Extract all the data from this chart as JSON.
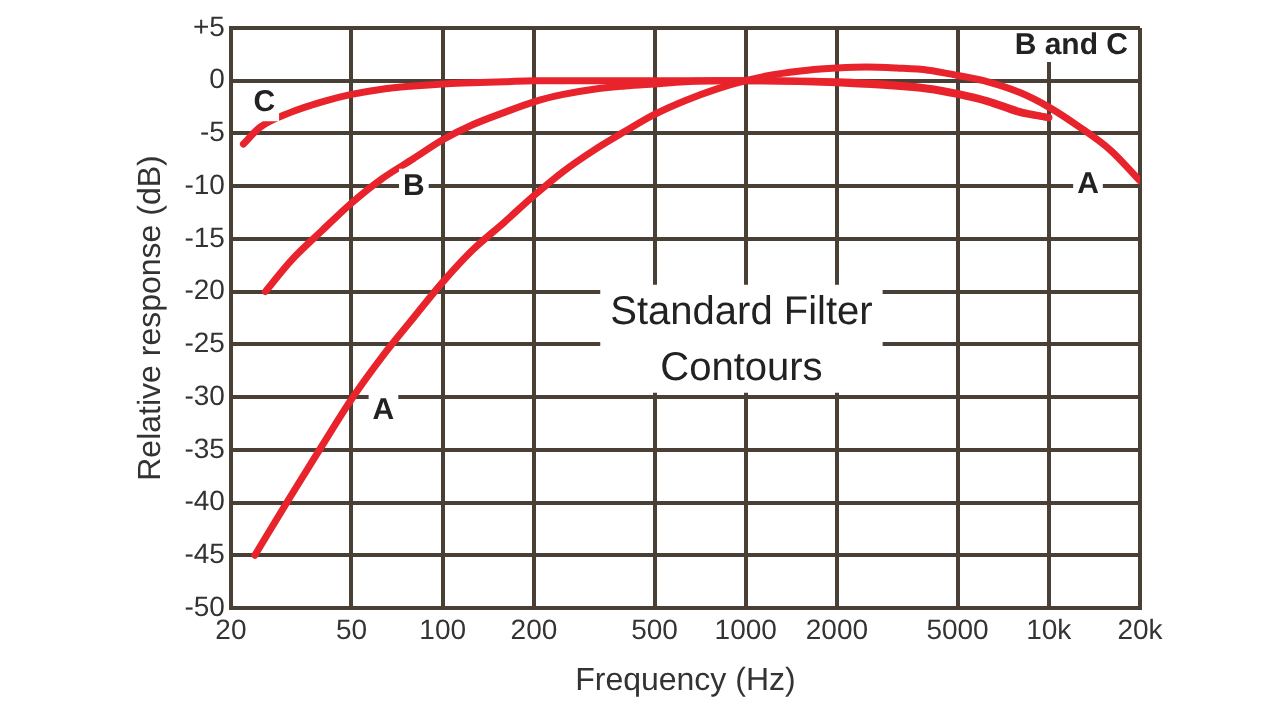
{
  "chart_data": {
    "type": "line",
    "xlabel": "Frequency (Hz)",
    "ylabel": "Relative response (dB)",
    "log": "x",
    "xlim": [
      20,
      20000
    ],
    "ylim": [
      -50,
      5
    ],
    "xticks": [
      20,
      50,
      100,
      200,
      500,
      1000,
      2000,
      5000,
      {
        "value": 10000,
        "label": "10k"
      },
      {
        "value": 20000,
        "label": "20k"
      }
    ],
    "yticks": [
      {
        "value": 5,
        "label": "+5"
      },
      0,
      -5,
      -10,
      -15,
      -20,
      -25,
      -30,
      -35,
      -40,
      -45,
      -50
    ],
    "grid": true,
    "legend": false,
    "marker": "none",
    "line_style": "solid",
    "series": [
      {
        "name": "A",
        "color": "#e8232b",
        "x": [
          24,
          31.5,
          40,
          50,
          63,
          80,
          100,
          125,
          160,
          200,
          250,
          315,
          400,
          500,
          630,
          800,
          1000,
          1250,
          1600,
          2000,
          2500,
          3150,
          4000,
          5000,
          6300,
          8000,
          10000,
          12500,
          16000,
          20000
        ],
        "values": [
          -45,
          -39.4,
          -34.6,
          -30.2,
          -26.2,
          -22.5,
          -19.1,
          -16.1,
          -13.4,
          -10.9,
          -8.6,
          -6.6,
          -4.8,
          -3.2,
          -1.9,
          -0.8,
          0,
          0.6,
          1,
          1.2,
          1.3,
          1.2,
          1,
          0.5,
          -0.1,
          -1.1,
          -2.5,
          -4.3,
          -6.6,
          -9.5
        ]
      },
      {
        "name": "B",
        "color": "#e8232b",
        "x": [
          26,
          31.5,
          40,
          50,
          63,
          80,
          100,
          125,
          160,
          200,
          250,
          315,
          400,
          500,
          630,
          800,
          1000,
          2000,
          4000,
          5000,
          6300,
          8000,
          10000
        ],
        "values": [
          -20,
          -17.1,
          -14.2,
          -11.6,
          -9.3,
          -7.4,
          -5.6,
          -4.2,
          -3,
          -2,
          -1.3,
          -0.8,
          -0.5,
          -0.3,
          -0.1,
          0,
          0,
          -0.1,
          -0.7,
          -1.2,
          -1.9,
          -2.9,
          -3.5
        ]
      },
      {
        "name": "C",
        "color": "#e8232b",
        "x": [
          22,
          25,
          31.5,
          40,
          50,
          63,
          80,
          100,
          125,
          160,
          200,
          315,
          500,
          1000,
          2000,
          4000,
          5000,
          6300,
          8000,
          10000
        ],
        "values": [
          -6,
          -4.4,
          -3,
          -2,
          -1.3,
          -0.8,
          -0.5,
          -0.3,
          -0.2,
          -0.1,
          0,
          0,
          0,
          0,
          -0.2,
          -0.8,
          -1.3,
          -2,
          -3,
          -3.5
        ]
      }
    ],
    "annotations": [
      "Standard Filter Contours",
      "B and C"
    ]
  }
}
